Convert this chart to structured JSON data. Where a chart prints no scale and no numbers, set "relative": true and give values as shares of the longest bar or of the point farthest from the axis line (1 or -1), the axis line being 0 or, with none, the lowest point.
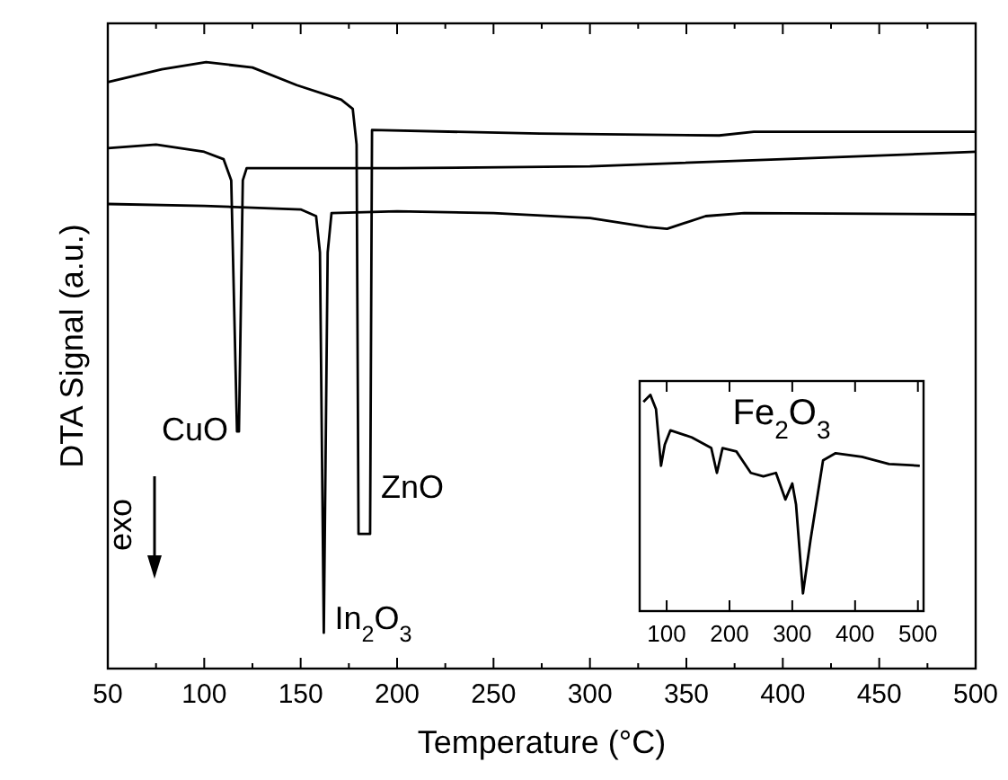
{
  "chart_data": [
    {
      "type": "line",
      "relative": true,
      "xlabel": "Temperature (°C)",
      "ylabel": "DTA Signal (a.u.)",
      "xlim": [
        50,
        500
      ],
      "xticks": [
        50,
        {
          "value": 75,
          "label": null
        },
        100,
        {
          "value": 125,
          "label": null
        },
        150,
        {
          "value": 175,
          "label": null
        },
        200,
        {
          "value": 225,
          "label": null
        },
        250,
        {
          "value": 275,
          "label": null
        },
        300,
        {
          "value": 325,
          "label": null
        },
        350,
        {
          "value": 375,
          "label": null
        },
        400,
        {
          "value": 425,
          "label": null
        },
        450,
        {
          "value": 475,
          "label": null
        },
        500
      ],
      "tick_labels": "x",
      "line_style": "solid",
      "series": [
        {
          "color": "#000000",
          "x": [
            50,
            78,
            101,
            125,
            148,
            171,
            177,
            179,
            180,
            186,
            187,
            274,
            367,
            385,
            500
          ],
          "values": [
            0.967,
            0.988,
            1,
            0.991,
            0.962,
            0.938,
            0.923,
            0.864,
            0.222,
            0.222,
            0.888,
            0.882,
            0.879,
            0.885,
            0.885
          ]
        },
        {
          "color": "#000000",
          "x": [
            50,
            75,
            100,
            110,
            114,
            117,
            118,
            120,
            122,
            200,
            300,
            400,
            500
          ],
          "values": [
            0.858,
            0.864,
            0.852,
            0.84,
            0.805,
            0.391,
            0.391,
            0.805,
            0.825,
            0.825,
            0.828,
            0.84,
            0.852
          ]
        },
        {
          "color": "#000000",
          "x": [
            50,
            100,
            150,
            158,
            160,
            162,
            164,
            166,
            200,
            250,
            300,
            330,
            340,
            360,
            380,
            500
          ],
          "values": [
            0.766,
            0.763,
            0.757,
            0.746,
            0.686,
            0.059,
            0.686,
            0.751,
            0.754,
            0.751,
            0.743,
            0.728,
            0.725,
            0.746,
            0.751,
            0.749
          ]
        }
      ],
      "annotations": [
        {
          "text": "CuO",
          "x": 118,
          "y": 0.391
        },
        {
          "text": "In$_{2}$O$_{3}$",
          "x": 162,
          "y": 0.059
        },
        {
          "text": "ZnO",
          "x": 186,
          "y": 0.222
        },
        "exo"
      ]
    },
    {
      "type": "line",
      "relative": true,
      "title": "Fe$_{2}$O$_{3}$",
      "xlim": [
        57,
        509
      ],
      "xticks": [
        100,
        200,
        300,
        400,
        500
      ],
      "tick_labels": "x",
      "line_style": "solid",
      "series": [
        {
          "color": "#000000",
          "x": [
            63,
            74,
            83,
            91,
            97,
            106,
            140,
            171,
            180,
            189,
            211,
            234,
            254,
            274,
            289,
            300,
            306,
            317,
            329,
            349,
            369,
            411,
            454,
            503
          ],
          "values": [
            0.967,
            1,
            0.934,
            0.672,
            0.77,
            0.836,
            0.803,
            0.754,
            0.639,
            0.754,
            0.738,
            0.639,
            0.623,
            0.639,
            0.516,
            0.59,
            0.492,
            0.082,
            0.328,
            0.697,
            0.73,
            0.713,
            0.68,
            0.672
          ]
        }
      ]
    }
  ]
}
